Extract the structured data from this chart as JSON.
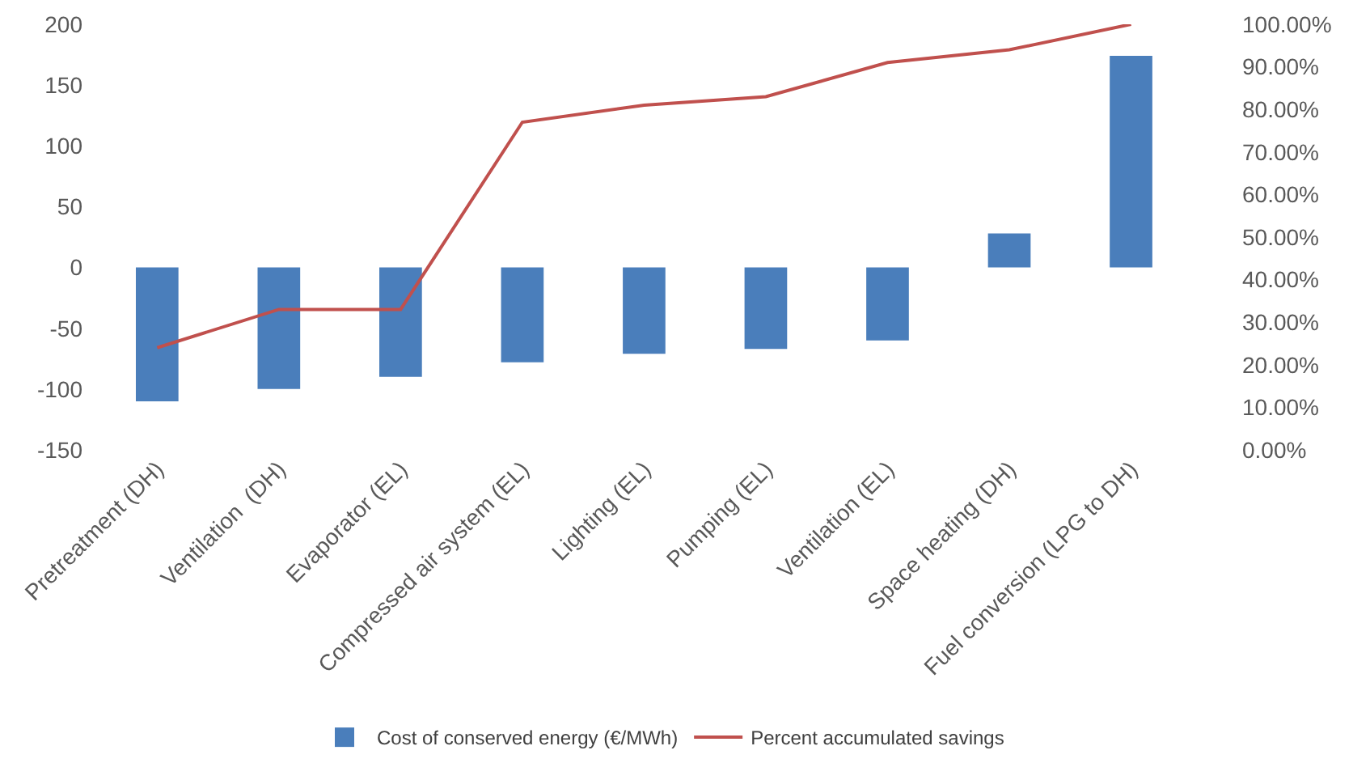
{
  "chart_data": {
    "type": "bar",
    "categories": [
      "Pretreatment (DH)",
      "Ventilation  (DH)",
      "Evaporator (EL)",
      "Compressed air system (EL)",
      "Lighting (EL)",
      "Pumping (EL)",
      "Ventilation (EL)",
      "Space heating (DH)",
      "Fuel conversion (LPG to DH)"
    ],
    "series": [
      {
        "name": "Cost of conserved energy (€/MWh)",
        "color": "#4a7ebb",
        "values": [
          -110,
          -100,
          -90,
          -78,
          -71,
          -67,
          -60,
          28,
          174
        ]
      },
      {
        "name": "Percent accumulated savings",
        "type": "line",
        "axis": "y2",
        "color": "#c0504d",
        "values": [
          24,
          33,
          33,
          77,
          81,
          83,
          91,
          94,
          100
        ]
      }
    ],
    "ylim": [
      -150,
      200
    ],
    "yticks": [
      -150,
      -100,
      -50,
      0,
      50,
      100,
      150,
      200
    ],
    "y2lim": [
      0,
      100
    ],
    "y2ticks": [
      {
        "value": 0,
        "label": "0.00%"
      },
      {
        "value": 10,
        "label": "10.00%"
      },
      {
        "value": 20,
        "label": "20.00%"
      },
      {
        "value": 30,
        "label": "30.00%"
      },
      {
        "value": 40,
        "label": "40.00%"
      },
      {
        "value": 50,
        "label": "50.00%"
      },
      {
        "value": 60,
        "label": "60.00%"
      },
      {
        "value": 70,
        "label": "70.00%"
      },
      {
        "value": 80,
        "label": "80.00%"
      },
      {
        "value": 90,
        "label": "90.00%"
      },
      {
        "value": 100,
        "label": "100.00%"
      }
    ],
    "grid": false,
    "legend": "bottom",
    "marker": "none",
    "line_style": "solid"
  }
}
